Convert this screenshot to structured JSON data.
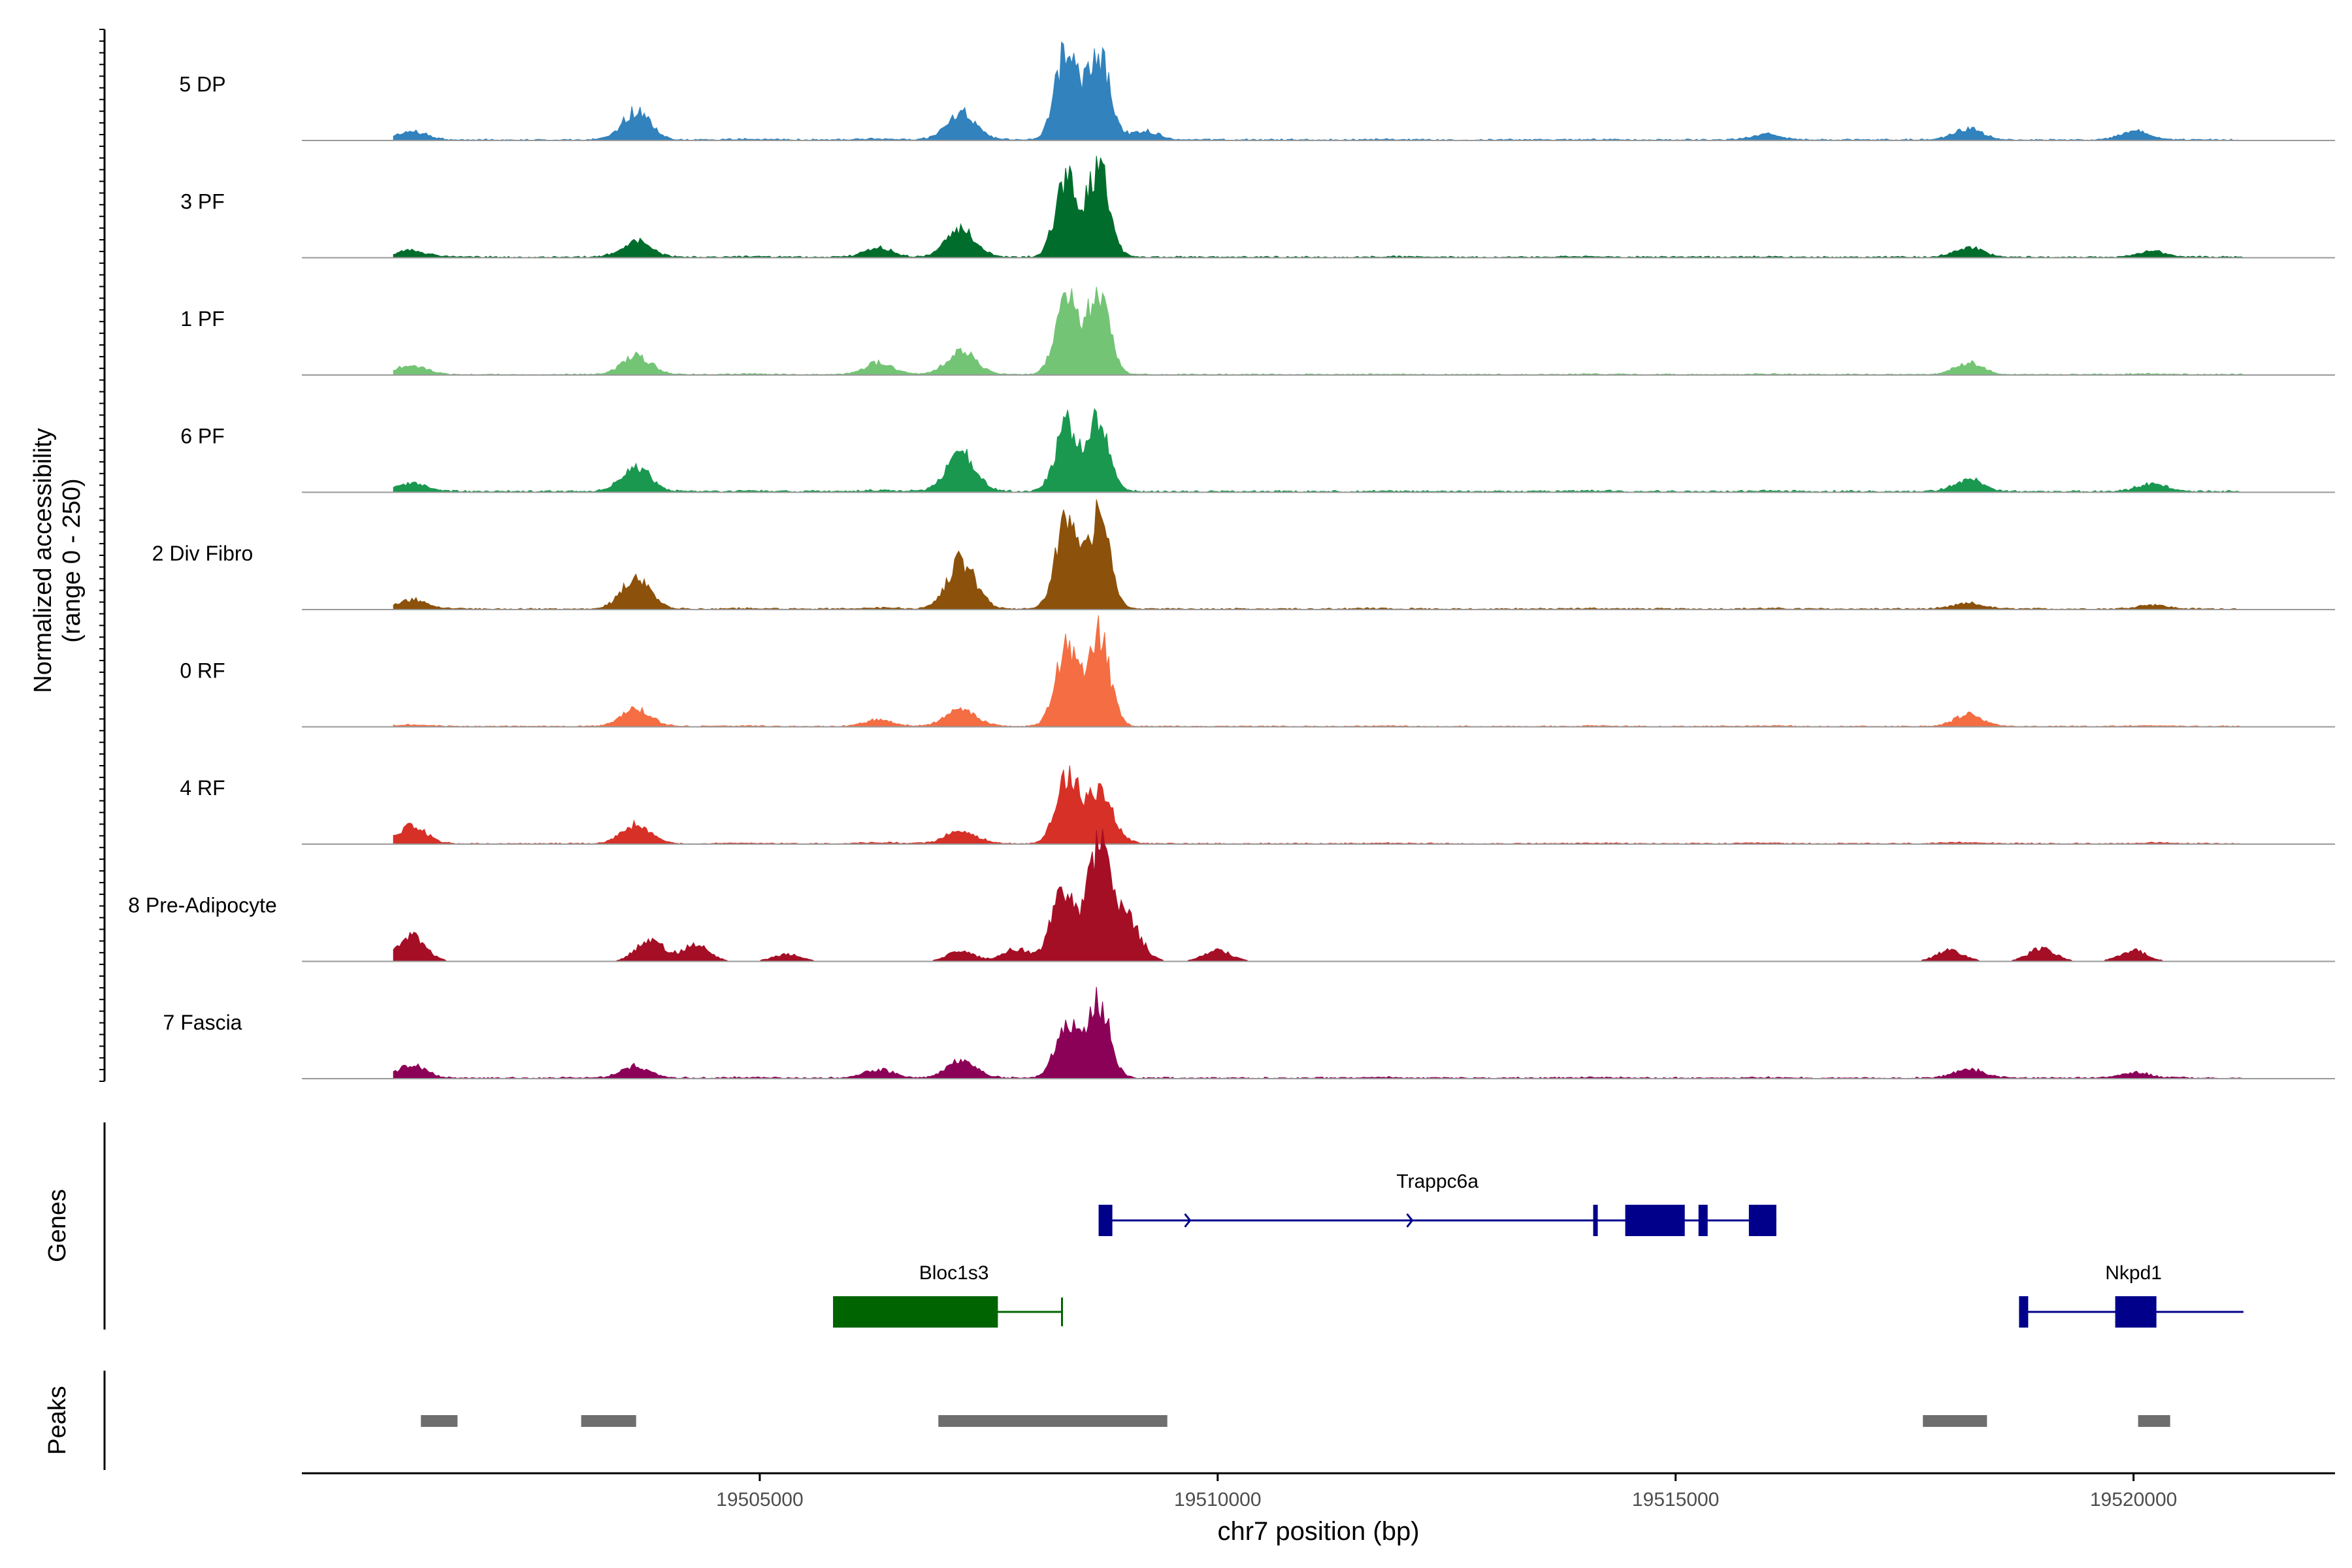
{
  "chart_data": {
    "type": "area",
    "title": "",
    "xlabel": "chr7 position (bp)",
    "xlim": [
      19500000,
      19522200
    ],
    "x_ticks": [
      {
        "value": 19505000,
        "label": "19505000"
      },
      {
        "value": 19510000,
        "label": "19510000"
      },
      {
        "value": 19515000,
        "label": "19515000"
      },
      {
        "value": 19520000,
        "label": "19520000"
      }
    ],
    "coverage_ylabel_line1": "Normalized accessibility",
    "coverage_ylabel_line2": "(range 0 - 250)",
    "ylim": [
      0,
      250
    ],
    "data_x_range": [
      19501000,
      19521200
    ],
    "background_peaks": [
      [
        19501200,
        16
      ],
      [
        19503650,
        26
      ],
      [
        19504900,
        5
      ],
      [
        19506300,
        9
      ],
      [
        19507200,
        38
      ],
      [
        19511800,
        4
      ],
      [
        19514100,
        4
      ],
      [
        19516000,
        4
      ],
      [
        19518200,
        10
      ],
      [
        19520200,
        6
      ]
    ],
    "series": [
      {
        "name": "5 DP",
        "color": "#3182bd",
        "baseline": 4,
        "peaks": [
          [
            19508350,
            250
          ],
          [
            19508700,
            240
          ],
          [
            19507200,
            65
          ],
          [
            19503650,
            70
          ],
          [
            19501200,
            18
          ],
          [
            19509200,
            25
          ],
          [
            19518200,
            28
          ],
          [
            19520000,
            22
          ],
          [
            19516000,
            14
          ]
        ]
      },
      {
        "name": "3 PF",
        "color": "#006d2c",
        "baseline": 4,
        "peaks": [
          [
            19508350,
            215
          ],
          [
            19508700,
            245
          ],
          [
            19507200,
            70
          ],
          [
            19503650,
            35
          ],
          [
            19506300,
            22
          ],
          [
            19518200,
            22
          ],
          [
            19520200,
            15
          ],
          [
            19501200,
            14
          ]
        ]
      },
      {
        "name": "1 PF",
        "color": "#74c476",
        "baseline": 3,
        "peaks": [
          [
            19508350,
            220
          ],
          [
            19508700,
            230
          ],
          [
            19507200,
            55
          ],
          [
            19503650,
            45
          ],
          [
            19506300,
            30
          ],
          [
            19518200,
            30
          ],
          [
            19501200,
            20
          ]
        ]
      },
      {
        "name": "6 PF",
        "color": "#1a9850",
        "baseline": 5,
        "peaks": [
          [
            19508350,
            190
          ],
          [
            19508700,
            200
          ],
          [
            19507200,
            95
          ],
          [
            19503650,
            60
          ],
          [
            19518200,
            30
          ],
          [
            19520200,
            20
          ],
          [
            19501200,
            20
          ]
        ]
      },
      {
        "name": "2 Div Fibro",
        "color": "#8c510a",
        "baseline": 4,
        "peaks": [
          [
            19508350,
            255
          ],
          [
            19508700,
            250
          ],
          [
            19507200,
            120
          ],
          [
            19503650,
            80
          ],
          [
            19501200,
            20
          ],
          [
            19518200,
            12
          ],
          [
            19520200,
            10
          ]
        ]
      },
      {
        "name": "0 RF",
        "color": "#f46d43",
        "baseline": 3,
        "peaks": [
          [
            19508350,
            210
          ],
          [
            19508700,
            250
          ],
          [
            19507200,
            40
          ],
          [
            19503650,
            40
          ],
          [
            19518200,
            30
          ],
          [
            19506300,
            15
          ]
        ]
      },
      {
        "name": "4 RF",
        "color": "#d73027",
        "baseline": 3,
        "peaks": [
          [
            19508350,
            180
          ],
          [
            19508700,
            150
          ],
          [
            19501200,
            45
          ],
          [
            19503650,
            45
          ],
          [
            19507200,
            25
          ]
        ]
      },
      {
        "name": "8 Pre-Adipocyte",
        "color": "#a50f26",
        "baseline": 0,
        "peaks": [
          [
            19508700,
            330
          ],
          [
            19508300,
            210
          ],
          [
            19509000,
            120
          ],
          [
            19501200,
            70
          ],
          [
            19503800,
            60
          ],
          [
            19504300,
            45
          ],
          [
            19507800,
            35
          ],
          [
            19510000,
            30
          ],
          [
            19518000,
            30
          ],
          [
            19519000,
            35
          ],
          [
            19520000,
            30
          ],
          [
            19507200,
            28
          ],
          [
            19505300,
            20
          ]
        ]
      },
      {
        "name": "7 Fascia",
        "color": "#8c0158",
        "baseline": 4,
        "peaks": [
          [
            19508350,
            155
          ],
          [
            19508700,
            210
          ],
          [
            19501200,
            30
          ],
          [
            19503650,
            25
          ],
          [
            19507200,
            35
          ],
          [
            19506300,
            20
          ],
          [
            19518200,
            22
          ],
          [
            19520000,
            15
          ]
        ]
      }
    ],
    "genes_label": "Genes",
    "genes": [
      {
        "name": "Trappc6a",
        "strand": "+",
        "color": "#00008b",
        "start": 19508700,
        "end": 19516100,
        "exons": [
          [
            19508700,
            19508850
          ],
          [
            19514100,
            19514150
          ],
          [
            19514450,
            19515100
          ],
          [
            19515250,
            19515350
          ],
          [
            19515800,
            19516100
          ]
        ]
      },
      {
        "name": "Bloc1s3",
        "strand": "-",
        "color": "#006400",
        "start": 19505800,
        "end": 19508300,
        "exons": [
          [
            19505800,
            19507600
          ]
        ]
      },
      {
        "name": "Nkpd1",
        "strand": "+",
        "color": "#00008b",
        "start": 19518750,
        "end": 19521200,
        "exons": [
          [
            19518750,
            19518850
          ],
          [
            19519800,
            19520250
          ]
        ]
      }
    ],
    "peaks_label": "Peaks",
    "peak_regions": [
      [
        19501300,
        19501700
      ],
      [
        19503050,
        19503650
      ],
      [
        19506950,
        19509450
      ],
      [
        19517700,
        19518400
      ],
      [
        19520050,
        19520400
      ]
    ],
    "colors": {
      "peak_region": "#6e6e6e",
      "track_baseline": "#999999",
      "axis": "#000000",
      "tick_text": "#4d4d4d"
    }
  }
}
